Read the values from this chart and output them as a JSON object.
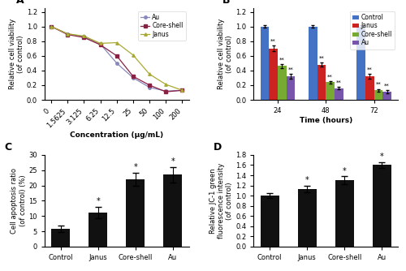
{
  "A": {
    "x_labels": [
      "0",
      "1.5625",
      "3.125",
      "6.25",
      "12.5",
      "25",
      "50",
      "100",
      "200"
    ],
    "au": [
      1.0,
      0.9,
      0.86,
      0.76,
      0.5,
      0.3,
      0.17,
      0.12,
      0.13
    ],
    "coreshell": [
      1.0,
      0.89,
      0.85,
      0.75,
      0.6,
      0.32,
      0.2,
      0.11,
      0.13
    ],
    "janus": [
      1.0,
      0.9,
      0.87,
      0.77,
      0.78,
      0.61,
      0.35,
      0.21,
      0.13
    ],
    "au_color": "#8888bb",
    "coreshell_color": "#882244",
    "janus_color": "#aaaa33",
    "ylabel": "Relative cell viability\n(of control)",
    "xlabel": "Concentration (µg/mL)",
    "ylim": [
      0,
      1.25
    ],
    "yticks": [
      0,
      0.2,
      0.4,
      0.6,
      0.8,
      1.0,
      1.2
    ],
    "label": "A"
  },
  "B": {
    "time_points": [
      24,
      48,
      72
    ],
    "control": [
      1.0,
      1.0,
      1.0
    ],
    "janus": [
      0.7,
      0.48,
      0.32
    ],
    "coreshell": [
      0.46,
      0.24,
      0.13
    ],
    "au": [
      0.32,
      0.16,
      0.11
    ],
    "control_err": [
      0.02,
      0.02,
      0.02
    ],
    "janus_err": [
      0.04,
      0.03,
      0.03
    ],
    "coreshell_err": [
      0.03,
      0.02,
      0.02
    ],
    "au_err": [
      0.03,
      0.02,
      0.02
    ],
    "control_color": "#4472c4",
    "janus_color": "#cc2222",
    "coreshell_color": "#77aa33",
    "au_color": "#7755aa",
    "ylabel": "Relative cell viability\n(of control)",
    "xlabel": "Time (hours)",
    "ylim": [
      0,
      1.25
    ],
    "yticks": [
      0,
      0.2,
      0.4,
      0.6,
      0.8,
      1.0,
      1.2
    ],
    "label": "B"
  },
  "C": {
    "categories": [
      "Control",
      "Janus",
      "Core-shell",
      "Au"
    ],
    "values": [
      5.8,
      11.2,
      22.0,
      23.5
    ],
    "errors": [
      1.0,
      1.8,
      2.2,
      2.5
    ],
    "bar_color": "#111111",
    "ylabel": "Cell apoptosis ratio\n(of control) (%)",
    "ylim": [
      0,
      30
    ],
    "yticks": [
      0,
      5,
      10,
      15,
      20,
      25,
      30
    ],
    "label": "C"
  },
  "D": {
    "categories": [
      "Control",
      "Janus",
      "Core-shell",
      "Au"
    ],
    "values": [
      1.0,
      1.13,
      1.3,
      1.6
    ],
    "errors": [
      0.05,
      0.07,
      0.08,
      0.06
    ],
    "bar_color": "#111111",
    "ylabel": "Relative JC-1 green\nfluorescence intensity\n(of control)",
    "ylim": [
      0,
      1.8
    ],
    "yticks": [
      0,
      0.2,
      0.4,
      0.6,
      0.8,
      1.0,
      1.2,
      1.4,
      1.6,
      1.8
    ],
    "label": "D"
  }
}
